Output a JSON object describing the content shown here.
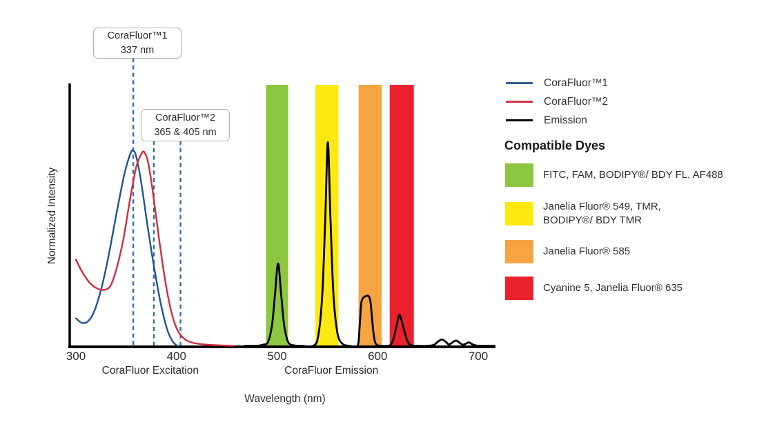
{
  "chart_data": {
    "type": "line",
    "xlabel": "Wavelength (nm)",
    "ylabel": "Normalized Intensity",
    "x_ticks": [
      "300",
      "400",
      "500",
      "600",
      "700"
    ],
    "x_range_nm": [
      300,
      717
    ],
    "ylim": [
      0,
      1
    ],
    "grid": false,
    "legend_position": "right",
    "dash_color": "#2E6DA8",
    "axis_group_labels": [
      {
        "label": "CoraFluor Excitation",
        "center_nm": 374
      },
      {
        "label": "CoraFluor Emission",
        "center_nm": 554
      }
    ],
    "bands": [
      {
        "name": "green",
        "color": "#8DC63F",
        "from_nm": 489,
        "to_nm": 511
      },
      {
        "name": "yellow",
        "color": "#FDE910",
        "from_nm": 538,
        "to_nm": 561
      },
      {
        "name": "orange",
        "color": "#F6A441",
        "from_nm": 581,
        "to_nm": 604
      },
      {
        "name": "red",
        "color": "#EB212E",
        "from_nm": 612,
        "to_nm": 636
      }
    ],
    "annotations": [
      {
        "line1": "CoraFluor™1",
        "line2": "337 nm",
        "dash_nm": [
          357
        ]
      },
      {
        "line1": "CoraFluor™2",
        "line2": "365 & 405 nm",
        "dash_nm": [
          377.5,
          404
        ]
      }
    ],
    "series": [
      {
        "name": "CoraFluor™1",
        "color": "#1F538F",
        "width": 2.4,
        "points": [
          [
            300,
            0.105
          ],
          [
            306,
            0.088
          ],
          [
            312,
            0.094
          ],
          [
            318,
            0.13
          ],
          [
            325,
            0.215
          ],
          [
            332,
            0.335
          ],
          [
            340,
            0.5
          ],
          [
            348,
            0.655
          ],
          [
            354,
            0.735
          ],
          [
            357,
            0.748
          ],
          [
            360,
            0.725
          ],
          [
            365,
            0.625
          ],
          [
            371,
            0.465
          ],
          [
            378,
            0.295
          ],
          [
            385,
            0.15
          ],
          [
            391,
            0.06
          ],
          [
            396,
            0.018
          ],
          [
            400,
            0.002
          ],
          [
            402,
            0
          ]
        ]
      },
      {
        "name": "CoraFluor™2",
        "color": "#D22B3D",
        "width": 2.4,
        "points": [
          [
            300,
            0.33
          ],
          [
            306,
            0.285
          ],
          [
            313,
            0.245
          ],
          [
            320,
            0.222
          ],
          [
            327,
            0.214
          ],
          [
            334,
            0.228
          ],
          [
            340,
            0.29
          ],
          [
            347,
            0.405
          ],
          [
            354,
            0.565
          ],
          [
            360,
            0.685
          ],
          [
            365,
            0.735
          ],
          [
            368,
            0.742
          ],
          [
            372,
            0.7
          ],
          [
            377,
            0.575
          ],
          [
            383,
            0.4
          ],
          [
            389,
            0.245
          ],
          [
            395,
            0.128
          ],
          [
            401,
            0.06
          ],
          [
            408,
            0.026
          ],
          [
            416,
            0.012
          ],
          [
            428,
            0.005
          ],
          [
            442,
            0.002
          ],
          [
            456,
            0
          ]
        ]
      },
      {
        "name": "Emission",
        "color": "#000000",
        "width": 2.8,
        "points": [
          [
            468,
            0
          ],
          [
            480,
            0
          ],
          [
            486,
            0.004
          ],
          [
            491,
            0.015
          ],
          [
            495,
            0.08
          ],
          [
            498,
            0.2
          ],
          [
            501,
            0.315
          ],
          [
            504,
            0.2
          ],
          [
            507,
            0.08
          ],
          [
            511,
            0.015
          ],
          [
            516,
            0.002
          ],
          [
            524,
            0
          ],
          [
            536,
            0
          ],
          [
            541,
            0.04
          ],
          [
            545,
            0.2
          ],
          [
            548,
            0.5
          ],
          [
            550.5,
            0.78
          ],
          [
            553,
            0.5
          ],
          [
            556,
            0.2
          ],
          [
            560,
            0.05
          ],
          [
            565,
            0.008
          ],
          [
            572,
            0
          ],
          [
            580,
            0
          ],
          [
            582,
            0.07
          ],
          [
            583.5,
            0.155
          ],
          [
            585,
            0.18
          ],
          [
            588,
            0.19
          ],
          [
            591,
            0.19
          ],
          [
            593,
            0.165
          ],
          [
            595,
            0.08
          ],
          [
            597,
            0.02
          ],
          [
            599.5,
            0.003
          ],
          [
            603,
            0
          ],
          [
            610,
            0
          ],
          [
            613,
            0.005
          ],
          [
            616,
            0.03
          ],
          [
            619,
            0.08
          ],
          [
            621.5,
            0.118
          ],
          [
            624,
            0.095
          ],
          [
            627,
            0.05
          ],
          [
            630,
            0.015
          ],
          [
            633,
            0.003
          ],
          [
            638,
            0
          ],
          [
            650,
            0
          ],
          [
            656,
            0.004
          ],
          [
            660,
            0.016
          ],
          [
            664,
            0.024
          ],
          [
            668,
            0.014
          ],
          [
            671,
            0.005
          ],
          [
            674,
            0.012
          ],
          [
            678,
            0.02
          ],
          [
            682,
            0.01
          ],
          [
            685,
            0.004
          ],
          [
            688,
            0.009
          ],
          [
            691,
            0.013
          ],
          [
            694,
            0.006
          ],
          [
            698,
            0.001
          ],
          [
            704,
            0
          ],
          [
            716,
            0
          ]
        ]
      }
    ]
  },
  "legend": {
    "items": [
      {
        "label": "CoraFluor™1",
        "color": "#31618F"
      },
      {
        "label": "CoraFluor™2",
        "color": "#C9344A"
      },
      {
        "label": "Emission",
        "color": "#000000"
      }
    ]
  },
  "dyes": {
    "heading": "Compatible Dyes",
    "items": [
      {
        "color": "#8DC63F",
        "label": "FITC, FAM, BODIPY®/ BDY FL, AF488"
      },
      {
        "color": "#FDE910",
        "label": "Janelia Fluor® 549, TMR,\nBODIPY®/ BDY TMR"
      },
      {
        "color": "#F6A441",
        "label": "Janelia Fluor® 585"
      },
      {
        "color": "#EB212E",
        "label": "Cyanine 5, Janelia Fluor® 635"
      }
    ]
  }
}
